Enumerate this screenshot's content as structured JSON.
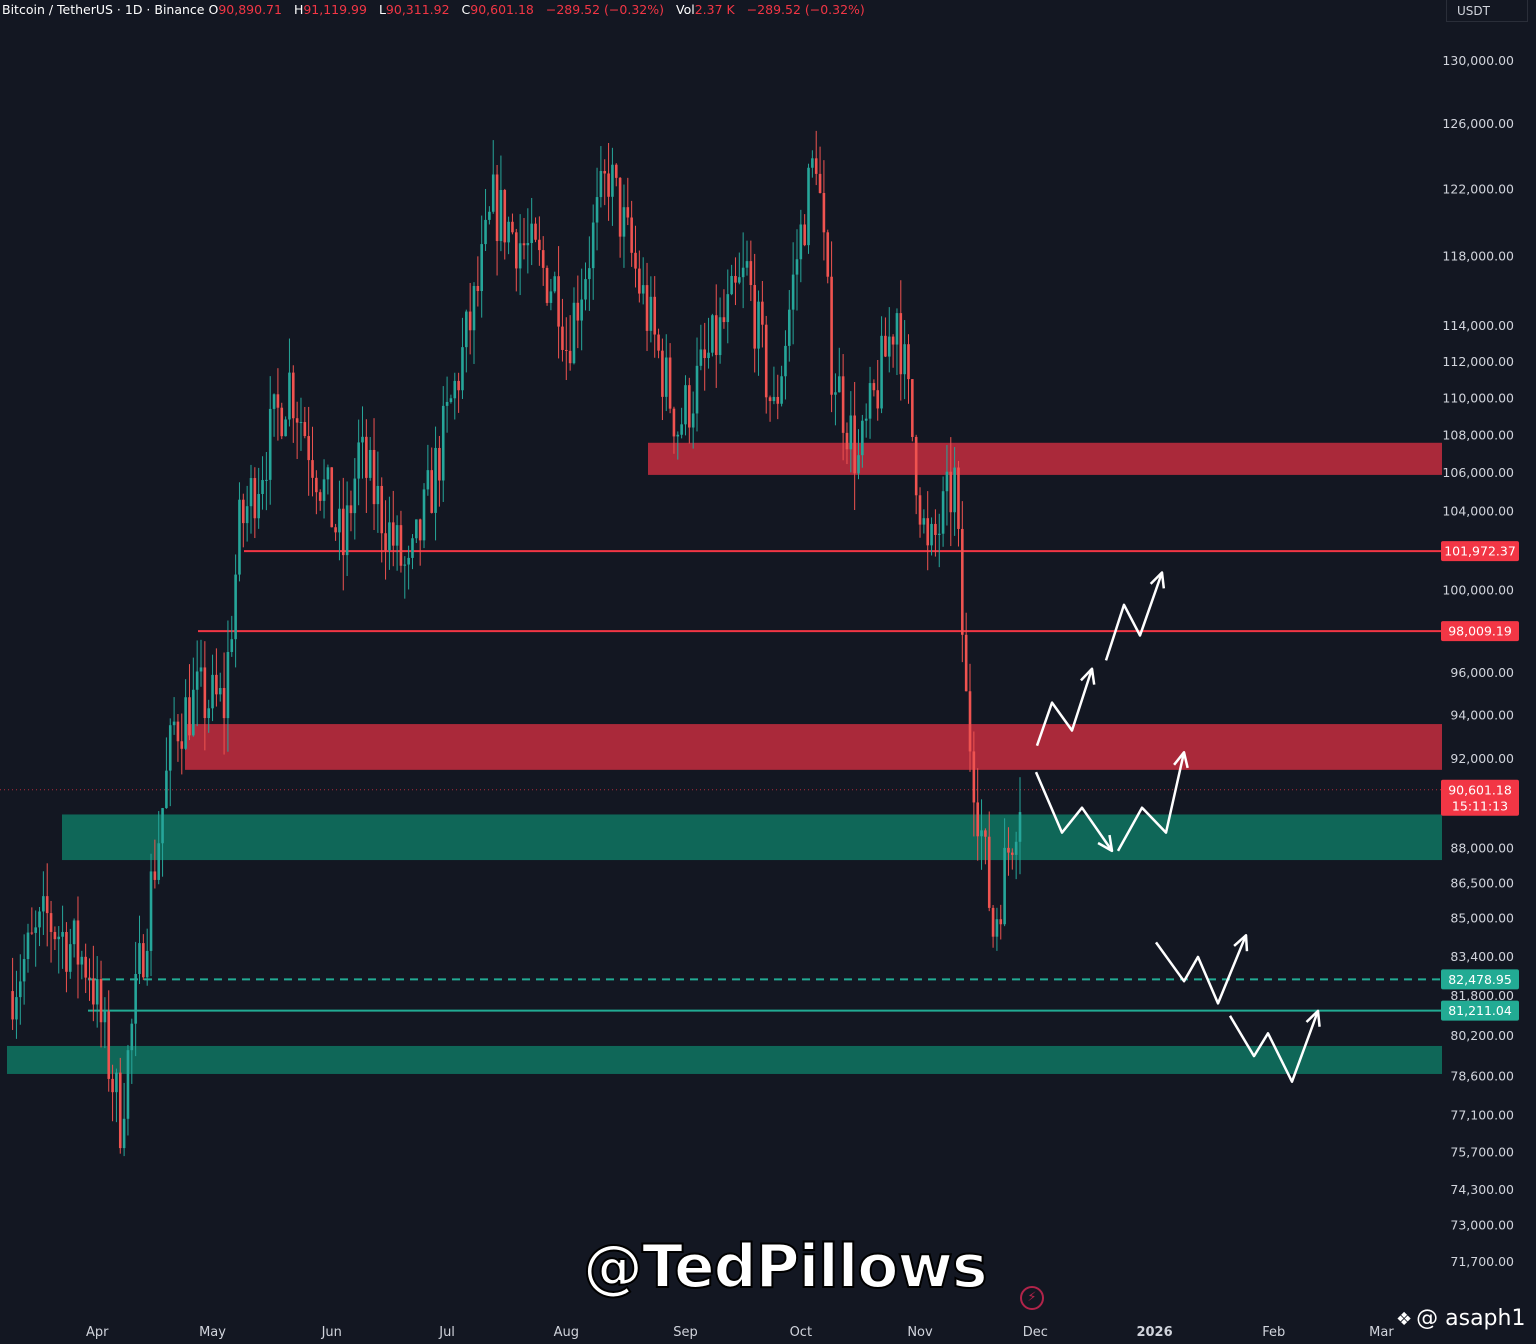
{
  "header": {
    "symbol": "Bitcoin / TetherUS · 1D · Binance",
    "o_label": "O",
    "o_value": "90,890.71",
    "h_label": "H",
    "h_value": "91,119.99",
    "l_label": "L",
    "l_value": "90,311.92",
    "c_label": "C",
    "c_value": "90,601.18",
    "change": "−289.52 (−0.32%)",
    "vol_label": "Vol",
    "vol_value": "2.37 K",
    "vol_change": "−289.52 (−0.32%)"
  },
  "currency": "USDT",
  "watermark": "@TedPillows",
  "footer_mark": "@ asaph1",
  "colors": {
    "background": "#131722",
    "up": "#26a69a",
    "down": "#ef5350",
    "resistance_zone": "#b22a3c",
    "support_zone": "#0f6b5c",
    "resistance_line": "#f23645",
    "support_line": "#22ab94",
    "annotation": "#ffffff"
  },
  "chart_data": {
    "type": "candlestick",
    "interval": "1D",
    "y_scale": "log",
    "ylim": [
      70500,
      131500
    ],
    "y_ticks": [
      "130,000.00",
      "126,000.00",
      "122,000.00",
      "118,000.00",
      "114,000.00",
      "112,000.00",
      "110,000.00",
      "108,000.00",
      "106,000.00",
      "104,000.00",
      "100,000.00",
      "96,000.00",
      "94,000.00",
      "92,000.00",
      "88,000.00",
      "86,500.00",
      "85,000.00",
      "83,400.00",
      "81,800.00",
      "80,200.00",
      "78,600.00",
      "77,100.00",
      "75,700.00",
      "74,300.00",
      "73,000.00",
      "71,700.00"
    ],
    "x_ticks": [
      "Apr",
      "May",
      "Jun",
      "Jul",
      "Aug",
      "Sep",
      "Oct",
      "Nov",
      "Dec",
      "2026",
      "Feb",
      "Mar"
    ],
    "price_path": [
      [
        "2025-03-10",
        82000
      ],
      [
        "2025-03-20",
        85000
      ],
      [
        "2025-03-31",
        83000
      ],
      [
        "2025-04-08",
        77000
      ],
      [
        "2025-04-14",
        84000
      ],
      [
        "2025-04-22",
        93500
      ],
      [
        "2025-04-28",
        94800
      ],
      [
        "2025-05-05",
        94500
      ],
      [
        "2025-05-09",
        103000
      ],
      [
        "2025-05-22",
        111000
      ],
      [
        "2025-06-05",
        102000
      ],
      [
        "2025-06-09",
        107000
      ],
      [
        "2025-06-22",
        100500
      ],
      [
        "2025-06-30",
        107000
      ],
      [
        "2025-07-10",
        116000
      ],
      [
        "2025-07-14",
        121000
      ],
      [
        "2025-07-31",
        116000
      ],
      [
        "2025-08-02",
        113000
      ],
      [
        "2025-08-13",
        123000
      ],
      [
        "2025-08-31",
        108500
      ],
      [
        "2025-09-18",
        117000
      ],
      [
        "2025-09-25",
        109000
      ],
      [
        "2025-10-01",
        118000
      ],
      [
        "2025-10-06",
        124500
      ],
      [
        "2025-10-10",
        112000
      ],
      [
        "2025-10-17",
        106500
      ],
      [
        "2025-10-27",
        115000
      ],
      [
        "2025-11-04",
        101500
      ],
      [
        "2025-11-11",
        105500
      ],
      [
        "2025-11-14",
        94500
      ],
      [
        "2025-11-21",
        84500
      ],
      [
        "2025-11-25",
        88000
      ],
      [
        "2025-11-28",
        90601.18
      ]
    ],
    "zones": [
      {
        "kind": "resistance",
        "from": 105900,
        "to": 107600
      },
      {
        "kind": "resistance",
        "from": 91500,
        "to": 93600
      },
      {
        "kind": "support",
        "from": 87500,
        "to": 89500
      },
      {
        "kind": "support",
        "from": 78700,
        "to": 79800
      }
    ],
    "levels": [
      {
        "price": "101,972.37",
        "kind": "resistance",
        "style": "solid"
      },
      {
        "price": "98,009.19",
        "kind": "resistance",
        "style": "solid"
      },
      {
        "price": "90,601.18",
        "kind": "last",
        "style": "dotted",
        "countdown": "15:11:13"
      },
      {
        "price": "82,478.95",
        "kind": "support",
        "style": "dashed"
      },
      {
        "price": "81,211.04",
        "kind": "support",
        "style": "solid"
      }
    ],
    "annotations": [
      {
        "kind": "zigzag_up",
        "from_price": 92200,
        "to_price": 100800
      },
      {
        "kind": "zigzag_down_up",
        "low_price": 88200,
        "to_price": 92500
      },
      {
        "kind": "zigzag_down_up",
        "low_price": 81400,
        "to_price": 84000
      },
      {
        "kind": "zigzag_down_up",
        "low_price": 78200,
        "to_price": 81200
      }
    ]
  }
}
